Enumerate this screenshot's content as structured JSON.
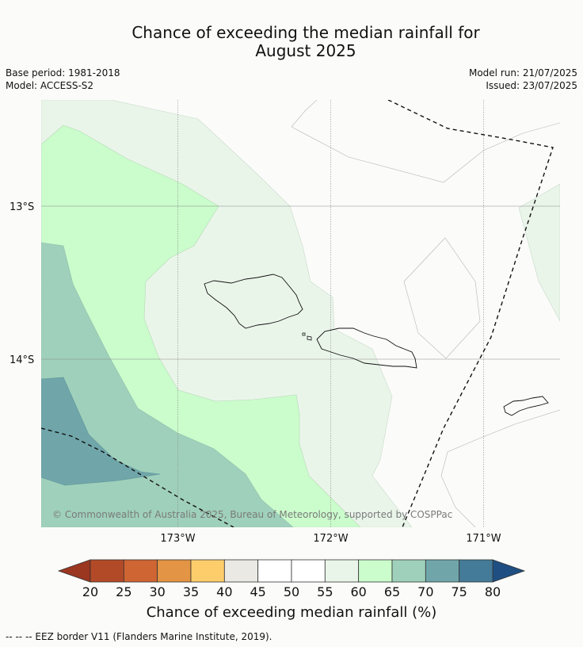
{
  "chart_data": {
    "type": "map",
    "title_line1": "Chance of exceeding the median rainfall for",
    "title_line2": "August 2025",
    "base_period": "Base period: 1981-2018",
    "model": "Model: ACCESS-S2",
    "model_run": "Model run: 21/07/2025",
    "issued": "Issued: 23/07/2025",
    "lat_ticks": [
      "13°S",
      "14°S"
    ],
    "lon_ticks": [
      "173°W",
      "172°W",
      "171°W"
    ],
    "credit": "© Commonwealth of Australia 2025, Bureau of Meteorology, supported by COSPPac",
    "colorbar": {
      "title": "Chance of exceeding median rainfall (%)",
      "ticks": [
        "20",
        "25",
        "30",
        "35",
        "40",
        "45",
        "50",
        "55",
        "60",
        "65",
        "70",
        "75",
        "80"
      ],
      "colors": [
        "#b34a27",
        "#cf6533",
        "#e39444",
        "#fdcd6b",
        "#ebe9e4",
        "#ffffff",
        "#ffffff",
        "#eaf5ea",
        "#cbfccc",
        "#9fd0bb",
        "#70a6aa",
        "#447b98"
      ],
      "under_color": "#9b3621",
      "over_color": "#1f4f82"
    },
    "footnote": "--  --  -- EEZ border V11 (Flanders Marine Institute, 2019)."
  }
}
